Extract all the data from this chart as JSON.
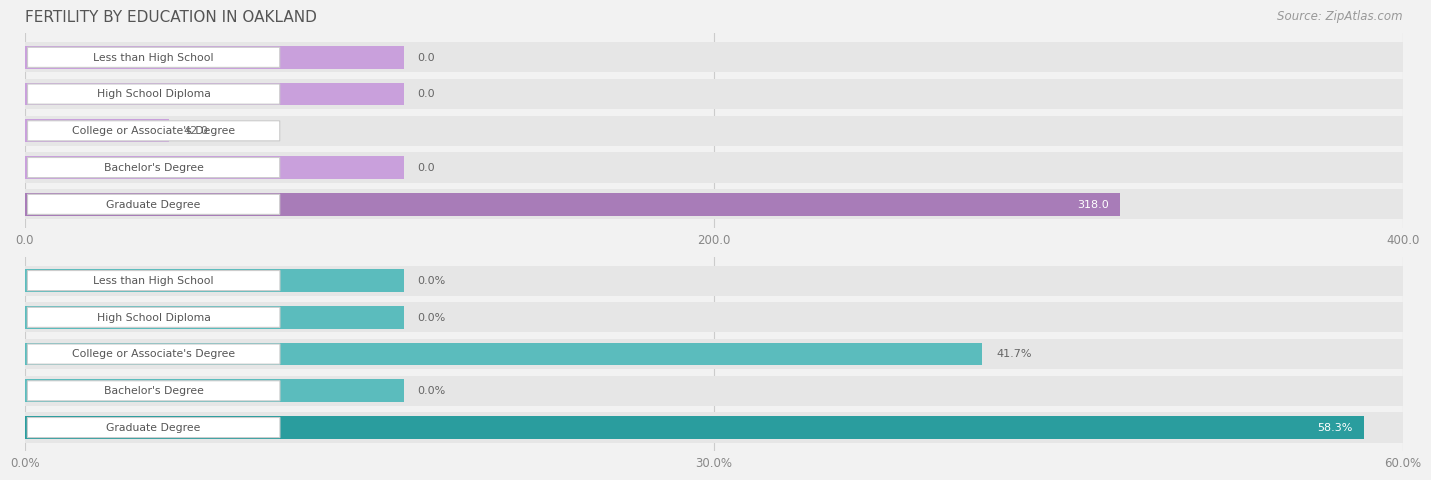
{
  "title": "FERTILITY BY EDUCATION IN OAKLAND",
  "source": "Source: ZipAtlas.com",
  "top_chart": {
    "categories": [
      "Less than High School",
      "High School Diploma",
      "College or Associate's Degree",
      "Bachelor's Degree",
      "Graduate Degree"
    ],
    "values": [
      0.0,
      0.0,
      42.0,
      0.0,
      318.0
    ],
    "zero_bar_extent": 110.0,
    "xlim": [
      0,
      400
    ],
    "xticks": [
      0.0,
      200.0,
      400.0
    ],
    "bar_color_main": "#c9a0dc",
    "bar_color_highlight": "#a87cb8",
    "label_text_color": "#555555"
  },
  "bottom_chart": {
    "categories": [
      "Less than High School",
      "High School Diploma",
      "College or Associate's Degree",
      "Bachelor's Degree",
      "Graduate Degree"
    ],
    "values": [
      0.0,
      0.0,
      41.7,
      0.0,
      58.3
    ],
    "zero_bar_extent": 16.5,
    "xlim": [
      0,
      60
    ],
    "xticks": [
      0.0,
      30.0,
      60.0
    ],
    "xtick_labels": [
      "0.0%",
      "30.0%",
      "60.0%"
    ],
    "bar_color_main": "#5bbcbd",
    "bar_color_highlight": "#2a9d9e",
    "label_text_color": "#555555"
  },
  "bg_color": "#f2f2f2",
  "row_bg_color": "#e6e6e6",
  "label_box_color": "#ffffff",
  "label_box_edge": "#cccccc",
  "title_color": "#555555",
  "source_color": "#999999",
  "value_label_color": "#666666",
  "value_label_color_on_bar": "#ffffff"
}
